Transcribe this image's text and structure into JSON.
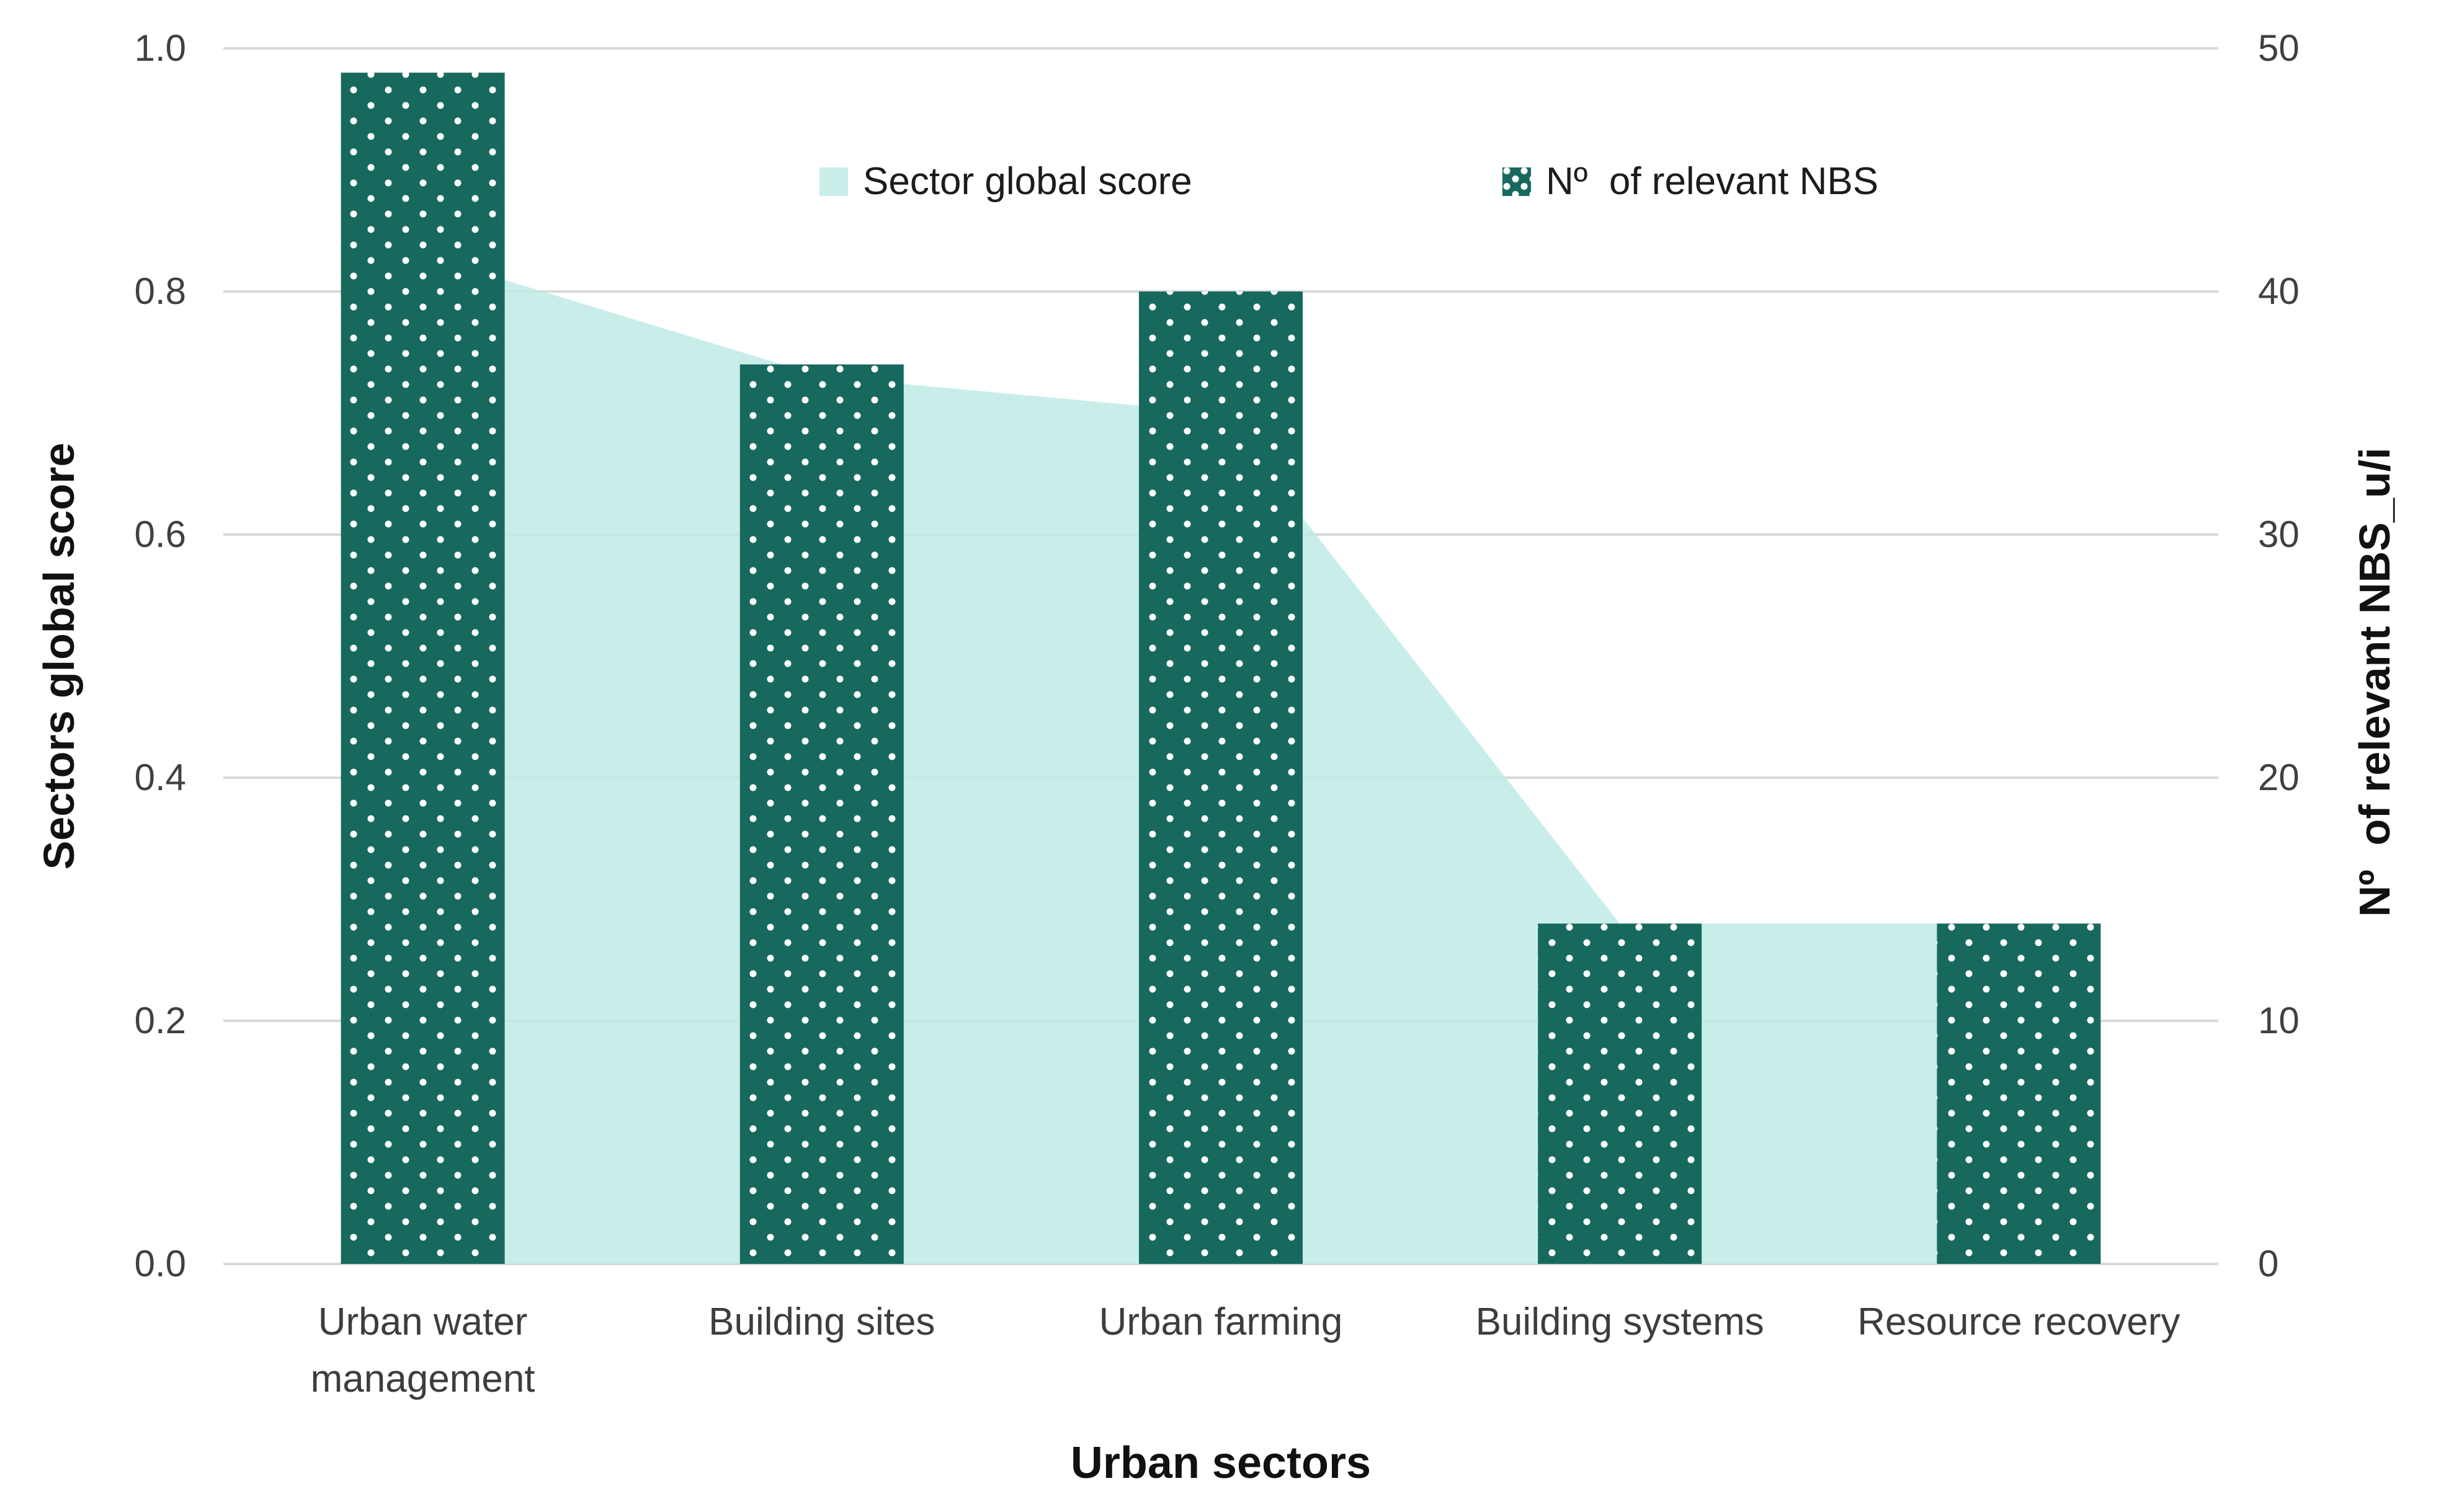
{
  "chart_data": {
    "type": "combo",
    "categories": [
      "Urban water management",
      "Building sites",
      "Urban farming",
      "Building systems",
      "Resource recovery"
    ],
    "series": [
      {
        "name": "Sector global score",
        "type": "area",
        "axis": "left",
        "values": [
          0.83,
          0.73,
          0.7,
          0.28,
          0.28
        ]
      },
      {
        "name": "Nº  of relevant NBS",
        "type": "bar",
        "axis": "right",
        "values": [
          49,
          37,
          40,
          14,
          14
        ]
      }
    ],
    "x_axis": {
      "title": "Urban sectors"
    },
    "y_axis_left": {
      "title": "Sectors global score",
      "min": 0.0,
      "max": 1.0,
      "ticks": [
        "0.0",
        "0.2",
        "0.4",
        "0.6",
        "0.8",
        "1.0"
      ]
    },
    "y_axis_right": {
      "title": "Nº  of relevant NBS_u/i",
      "min": 0,
      "max": 50,
      "ticks": [
        "0",
        "10",
        "20",
        "30",
        "40",
        "50"
      ]
    },
    "gridlines": "horizontal",
    "legend_position": "top-center"
  },
  "legend": {
    "items": [
      {
        "label": "Sector global score",
        "swatch": "area-solid"
      },
      {
        "label": "Nº  of relevant NBS",
        "swatch": "bar-dotted"
      }
    ]
  },
  "colors": {
    "area_fill": "#c9eeea",
    "bar_fill": "#17695e",
    "pattern_dot": "#ffffff",
    "gridline": "#d9d9d9",
    "tick_text": "#404040",
    "category_text": "#3d3d3d",
    "title_text": "#111111",
    "background": "#ffffff"
  }
}
